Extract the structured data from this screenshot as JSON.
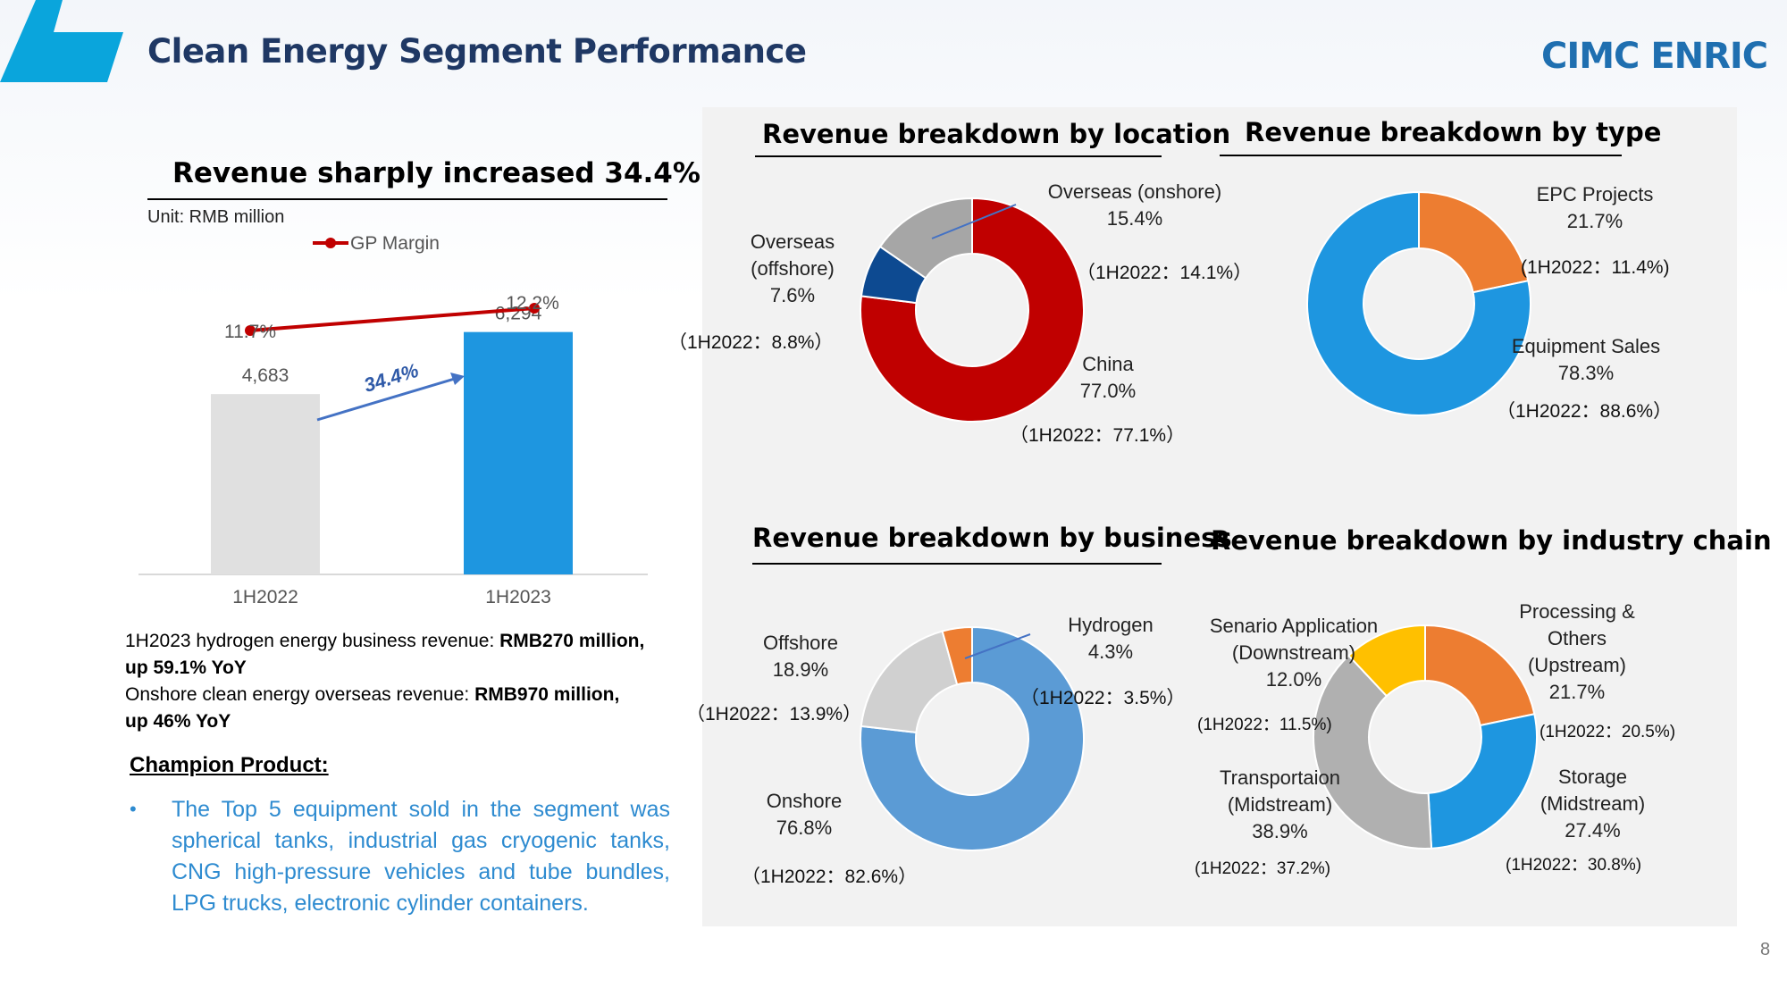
{
  "header": {
    "title": "Clean Energy Segment Performance",
    "logo_text": "CIMC ENRIC",
    "page_number": "8"
  },
  "revenue_section": {
    "title": "Revenue sharply increased 34.4%",
    "unit": "Unit: RMB million",
    "growth_label": "34.4%"
  },
  "notes": {
    "line1_prefix": "1H2023 hydrogen energy business revenue: ",
    "line1_bold": "RMB270 million,",
    "line1_cont": "up 59.1% YoY",
    "line2_prefix": "Onshore clean energy overseas revenue: ",
    "line2_bold": "RMB970 million,",
    "line2_cont": "up 46% YoY"
  },
  "champion": {
    "heading": "Champion Product:",
    "bullet": "The Top 5 equipment sold in the segment was spherical tanks, industrial gas cryogenic tanks, CNG high-pressure vehicles and tube bundles, LPG trucks, electronic cylinder containers."
  },
  "donut_titles": {
    "location": "Revenue breakdown by location",
    "type": "Revenue breakdown by type",
    "business": "Revenue breakdown by business",
    "industry": "Revenue breakdown by industry chain"
  },
  "labels": {
    "loc_overseas_onshore": [
      "Overseas (onshore)",
      "15.4%"
    ],
    "loc_overseas_onshore_prior": "（1H2022：14.1%）",
    "loc_overseas_offshore": [
      "Overseas",
      "(offshore)",
      "7.6%"
    ],
    "loc_overseas_offshore_prior": "（1H2022：8.8%）",
    "loc_china": [
      "China",
      "77.0%"
    ],
    "loc_china_prior": "（1H2022：77.1%）",
    "type_epc": [
      "EPC Projects",
      "21.7%"
    ],
    "type_epc_prior": "(1H2022：11.4%)",
    "type_equipment": [
      "Equipment Sales",
      "78.3%"
    ],
    "type_equipment_prior": "（1H2022：88.6%）",
    "bus_offshore": [
      "Offshore",
      "18.9%"
    ],
    "bus_offshore_prior": "（1H2022：13.9%）",
    "bus_hydrogen": [
      "Hydrogen",
      "4.3%"
    ],
    "bus_hydrogen_prior": "（1H2022：3.5%）",
    "bus_onshore": [
      "Onshore",
      "76.8%"
    ],
    "bus_onshore_prior": "（1H2022：82.6%）",
    "ind_scenario": [
      "Senario Application",
      "(Downstream)",
      "12.0%"
    ],
    "ind_scenario_prior": "(1H2022：11.5%)",
    "ind_processing": [
      "Processing &",
      "Others",
      "(Upstream)",
      "21.7%"
    ],
    "ind_processing_prior": "(1H2022：20.5%)",
    "ind_transport": [
      "Transportaion",
      "(Midstream)",
      "38.9%"
    ],
    "ind_transport_prior": "(1H2022：37.2%)",
    "ind_storage": [
      "Storage",
      "(Midstream)",
      "27.4%"
    ],
    "ind_storage_prior": "(1H2022：30.8%)"
  },
  "chart_data": [
    {
      "type": "bar",
      "categories": [
        "1H2022",
        "1H2023"
      ],
      "series": [
        {
          "name": "",
          "values": [
            4683,
            6294
          ],
          "value_labels": [
            "4,683",
            "6,294"
          ],
          "colors": [
            "#e0e0e0",
            "#1e96e0"
          ]
        }
      ],
      "line_series": {
        "name": "GP Margin",
        "values": [
          11.7,
          12.2
        ],
        "value_labels": [
          "11.7%",
          "12.2%"
        ],
        "color": "#c00000"
      },
      "ylim": [
        0,
        9000
      ]
    },
    {
      "type": "pie",
      "title": "Revenue breakdown by location",
      "categories": [
        "Overseas (onshore)",
        "China",
        "Overseas (offshore)"
      ],
      "values": [
        15.4,
        77.0,
        7.6
      ],
      "colors": [
        "#c00000",
        "#c00000",
        "#0d4a91"
      ],
      "start_color_override": [
        "#a6a6a6",
        "#c00000",
        "#0d4a91"
      ],
      "order_from_top_clockwise": [
        "China",
        "Overseas (offshore)",
        "Overseas (onshore)"
      ]
    },
    {
      "type": "pie",
      "title": "Revenue breakdown by type",
      "categories": [
        "EPC Projects",
        "Equipment Sales"
      ],
      "values": [
        21.7,
        78.3
      ],
      "colors": [
        "#ed7d31",
        "#1e96e0"
      ]
    },
    {
      "type": "pie",
      "title": "Revenue breakdown by business",
      "categories": [
        "Onshore",
        "Offshore",
        "Hydrogen"
      ],
      "values": [
        76.8,
        18.9,
        4.3
      ],
      "colors": [
        "#5b9bd5",
        "#d0d0d0",
        "#ed7d31"
      ]
    },
    {
      "type": "pie",
      "title": "Revenue breakdown by industry chain",
      "categories": [
        "Processing & Others (Upstream)",
        "Storage (Midstream)",
        "Transportaion (Midstream)",
        "Senario Application (Downstream)"
      ],
      "values": [
        21.7,
        27.4,
        38.9,
        12.0
      ],
      "colors": [
        "#ed7d31",
        "#1e96e0",
        "#b0b0b0",
        "#ffc000"
      ]
    }
  ],
  "colors": {
    "title_blue": "#1f3864",
    "accent_cyan": "#0aa5dc",
    "logo_blue": "#1f6fb0",
    "bullet_blue": "#2e8bd0"
  }
}
